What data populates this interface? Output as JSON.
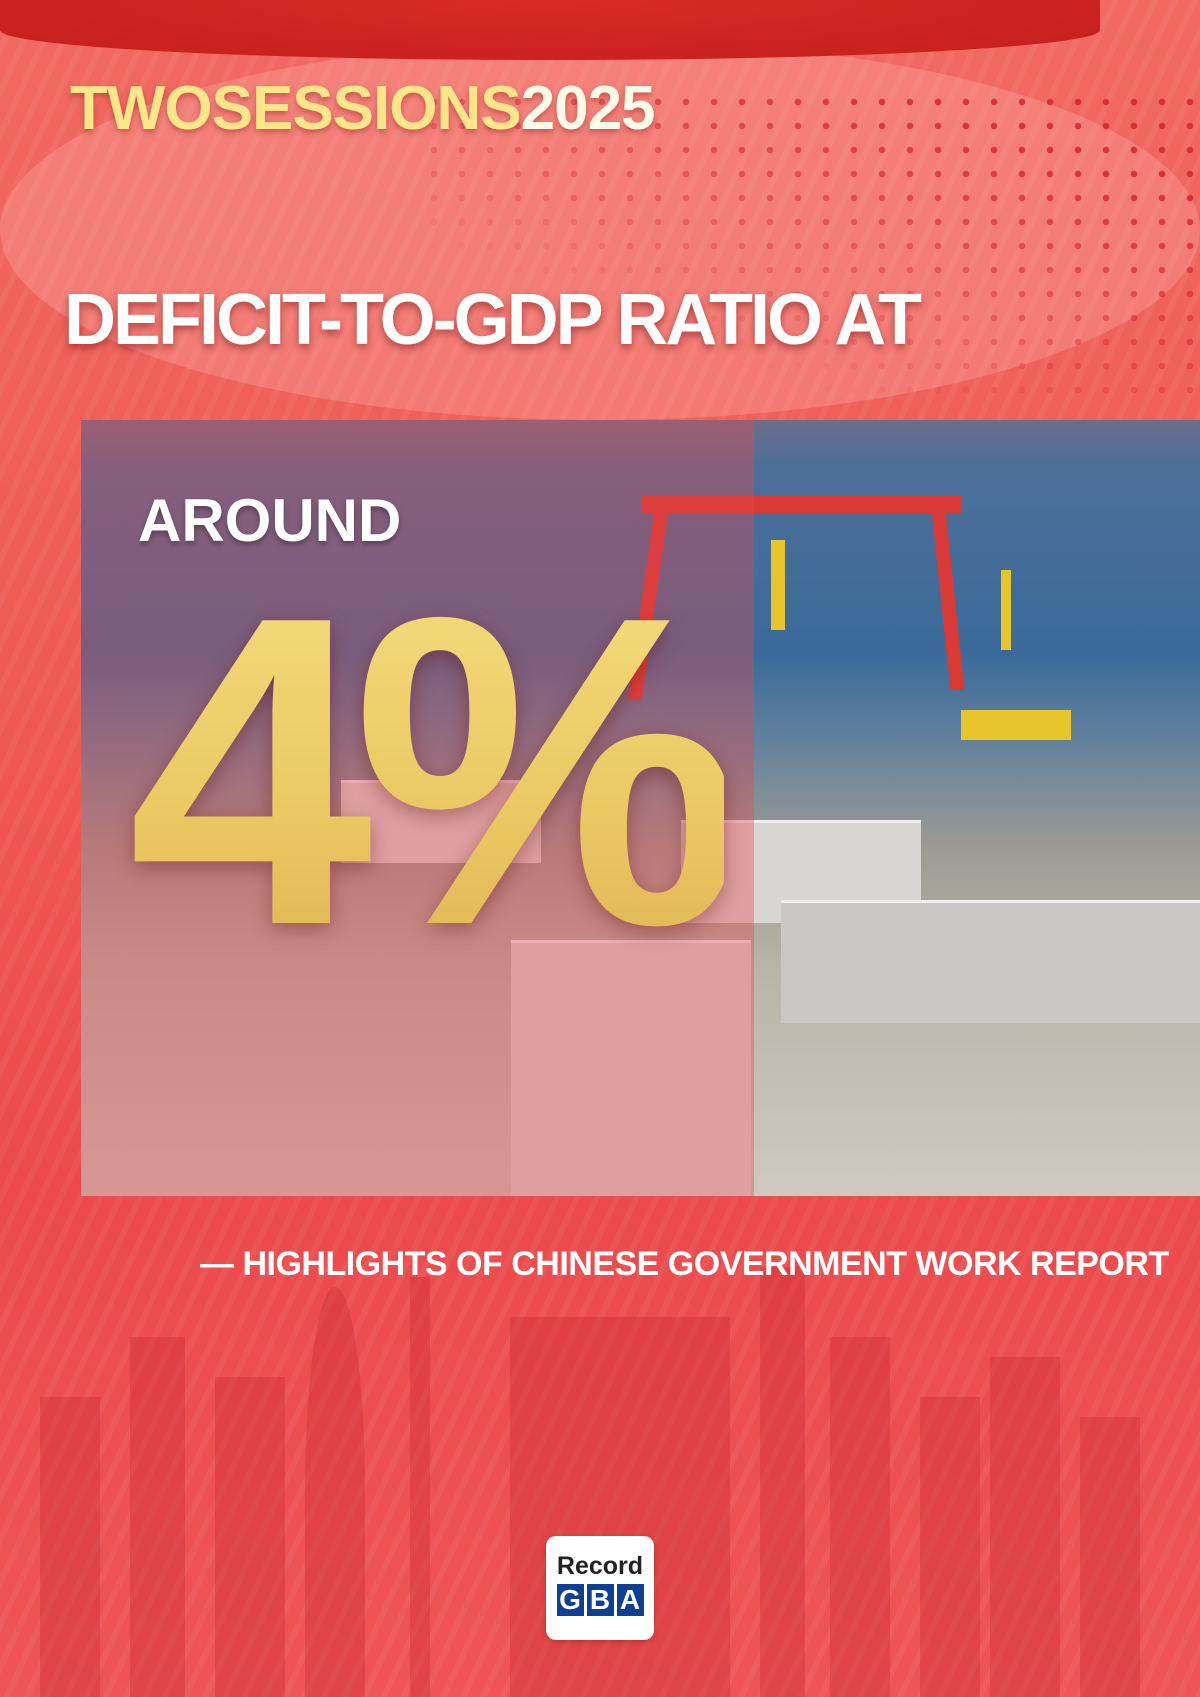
{
  "tagline": {
    "part1": "TWOSESSIONS",
    "part2": "2025"
  },
  "headline": "DEFICIT-TO-GDP RATIO AT",
  "around": "AROUND",
  "big_value": "4%",
  "subtitle": "— HIGHLIGHTS OF CHINESE GOVERNMENT WORK REPORT",
  "logo": {
    "line1": "Record",
    "letters": [
      "G",
      "B",
      "A"
    ]
  },
  "colors": {
    "background": "#ee5a55",
    "accent_gold": "#ebc862",
    "logo_blue": "#0f3f93"
  }
}
